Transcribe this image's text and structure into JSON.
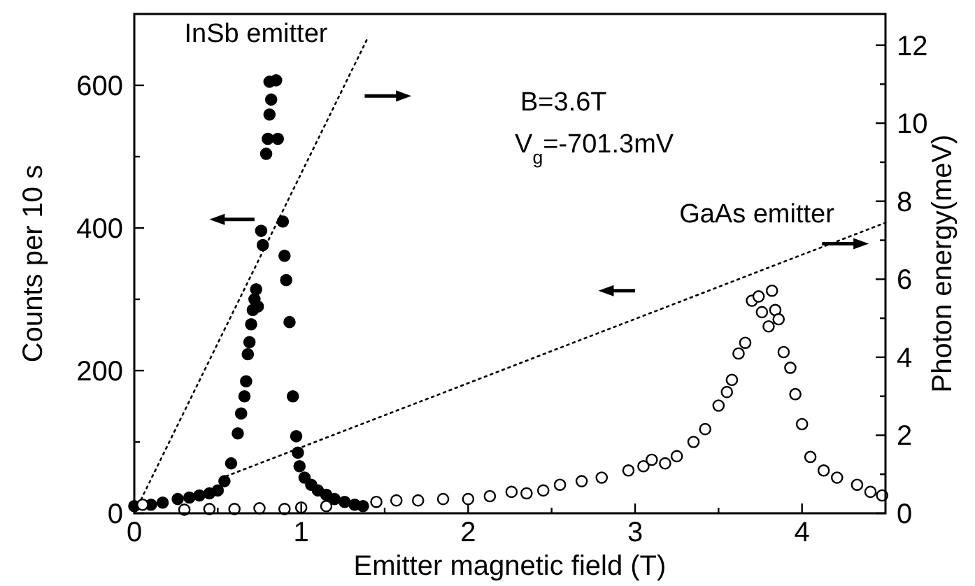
{
  "chart_data": {
    "type": "scatter",
    "xlabel": "Emitter magnetic field (T)",
    "ylabel": "Counts per 10 s",
    "y2label": "Photon energy(meV)",
    "xlim": [
      0,
      4.5
    ],
    "xticks": [
      0,
      {
        "value": 0.5,
        "label": null
      },
      1,
      {
        "value": 1.5,
        "label": null
      },
      2,
      {
        "value": 2.5,
        "label": null
      },
      3,
      {
        "value": 3.5,
        "label": null
      },
      4
    ],
    "ylim": [
      0,
      700
    ],
    "yticks": [
      0,
      {
        "value": 100,
        "label": null
      },
      200,
      {
        "value": 300,
        "label": null
      },
      400,
      {
        "value": 500,
        "label": null
      },
      600
    ],
    "y2lim": [
      0,
      12.8
    ],
    "y2ticks": [
      0,
      {
        "value": 1,
        "label": null
      },
      2,
      {
        "value": 3,
        "label": null
      },
      4,
      {
        "value": 5,
        "label": null
      },
      6,
      {
        "value": 7,
        "label": null
      },
      8,
      {
        "value": 9,
        "label": null
      },
      10,
      {
        "value": 11,
        "label": null
      },
      12
    ],
    "grid": false,
    "marker": "circle",
    "series": [
      {
        "color": "#000000",
        "x": [
          0,
          0.1,
          0.17,
          0.26,
          0.33,
          0.39,
          0.45,
          0.5,
          0.54,
          0.58,
          0.62,
          0.64,
          0.66,
          0.67,
          0.68,
          0.69,
          0.7,
          0.71,
          0.72,
          0.73,
          0.74,
          0.76,
          0.77,
          0.79,
          0.8,
          0.81,
          0.82,
          0.81,
          0.85,
          0.86,
          0.89,
          0.9,
          0.91,
          0.93,
          0.95,
          0.97,
          0.98,
          0.99,
          1.02,
          1.06,
          1.1,
          1.15,
          1.2,
          1.26,
          1.32,
          1.37
        ],
        "values": [
          10,
          12,
          15,
          20,
          22,
          25,
          28,
          32,
          45,
          70,
          112,
          140,
          164,
          185,
          223,
          240,
          265,
          285,
          300,
          314,
          290,
          396,
          376,
          504,
          525,
          559,
          580,
          605,
          607,
          525,
          409,
          361,
          327,
          268,
          164,
          108,
          85,
          66,
          50,
          40,
          32,
          26,
          20,
          16,
          12,
          10
        ]
      },
      {
        "color": "#ffffff",
        "x": [
          0.05,
          0.3,
          0.45,
          0.6,
          0.75,
          0.9,
          1.0,
          1.15,
          1.45,
          1.57,
          1.7,
          1.85,
          2.0,
          2.13,
          2.26,
          2.35,
          2.45,
          2.55,
          2.68,
          2.8,
          2.96,
          3.05,
          3.1,
          3.18,
          3.25,
          3.35,
          3.42,
          3.5,
          3.55,
          3.58,
          3.62,
          3.66,
          3.7,
          3.74,
          3.76,
          3.8,
          3.82,
          3.84,
          3.86,
          3.89,
          3.93,
          3.96,
          4.0,
          4.05,
          4.13,
          4.21,
          4.33,
          4.41,
          4.48
        ],
        "values": [
          12,
          5,
          6,
          6,
          7,
          6,
          8,
          10,
          16,
          18,
          18,
          20,
          20,
          24,
          30,
          28,
          32,
          40,
          45,
          50,
          60,
          66,
          75,
          70,
          80,
          100,
          118,
          151,
          170,
          187,
          224,
          239,
          298,
          304,
          282,
          262,
          312,
          285,
          272,
          226,
          204,
          167,
          125,
          79,
          60,
          50,
          40,
          30,
          25
        ]
      },
      {
        "type": "line",
        "axis": "y2",
        "color": "#000000",
        "line_style": "dotted",
        "marker": "none",
        "x": [
          0.04,
          1.4
        ],
        "values": [
          0.35,
          12.2
        ]
      },
      {
        "type": "line",
        "axis": "y2",
        "color": "#000000",
        "line_style": "dotted",
        "marker": "none",
        "x": [
          0.55,
          4.5
        ],
        "values": [
          0.95,
          7.45
        ]
      }
    ],
    "annotations": [
      "InSb emitter",
      "GaAs emitter",
      "B=3.6T",
      "V$_{g}$=-701.3mV"
    ]
  }
}
